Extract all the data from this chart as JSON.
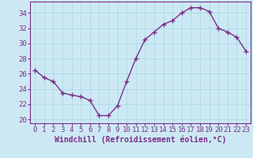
{
  "x": [
    0,
    1,
    2,
    3,
    4,
    5,
    6,
    7,
    8,
    9,
    10,
    11,
    12,
    13,
    14,
    15,
    16,
    17,
    18,
    19,
    20,
    21,
    22,
    23
  ],
  "y": [
    26.5,
    25.5,
    25.0,
    23.5,
    23.2,
    23.0,
    22.5,
    20.5,
    20.5,
    21.8,
    25.0,
    28.0,
    30.5,
    31.5,
    32.5,
    33.0,
    34.0,
    34.7,
    34.7,
    34.2,
    32.0,
    31.5,
    30.8,
    29.0
  ],
  "line_color": "#7b2d8b",
  "marker": "+",
  "markersize": 4,
  "markeredgewidth": 1.0,
  "linewidth": 1.0,
  "xlabel": "Windchill (Refroidissement éolien,°C)",
  "ylabel": "",
  "title": "",
  "xlim": [
    -0.5,
    23.5
  ],
  "ylim": [
    19.5,
    35.5
  ],
  "yticks": [
    20,
    22,
    24,
    26,
    28,
    30,
    32,
    34
  ],
  "xticks": [
    0,
    1,
    2,
    3,
    4,
    5,
    6,
    7,
    8,
    9,
    10,
    11,
    12,
    13,
    14,
    15,
    16,
    17,
    18,
    19,
    20,
    21,
    22,
    23
  ],
  "bg_color": "#cce9f3",
  "grid_color": "#aed8e8",
  "axis_color": "#7b2d8b",
  "tick_color": "#7b2d8b",
  "label_color": "#7b2d8b",
  "xlabel_fontsize": 7.0,
  "tick_fontsize": 6.5
}
